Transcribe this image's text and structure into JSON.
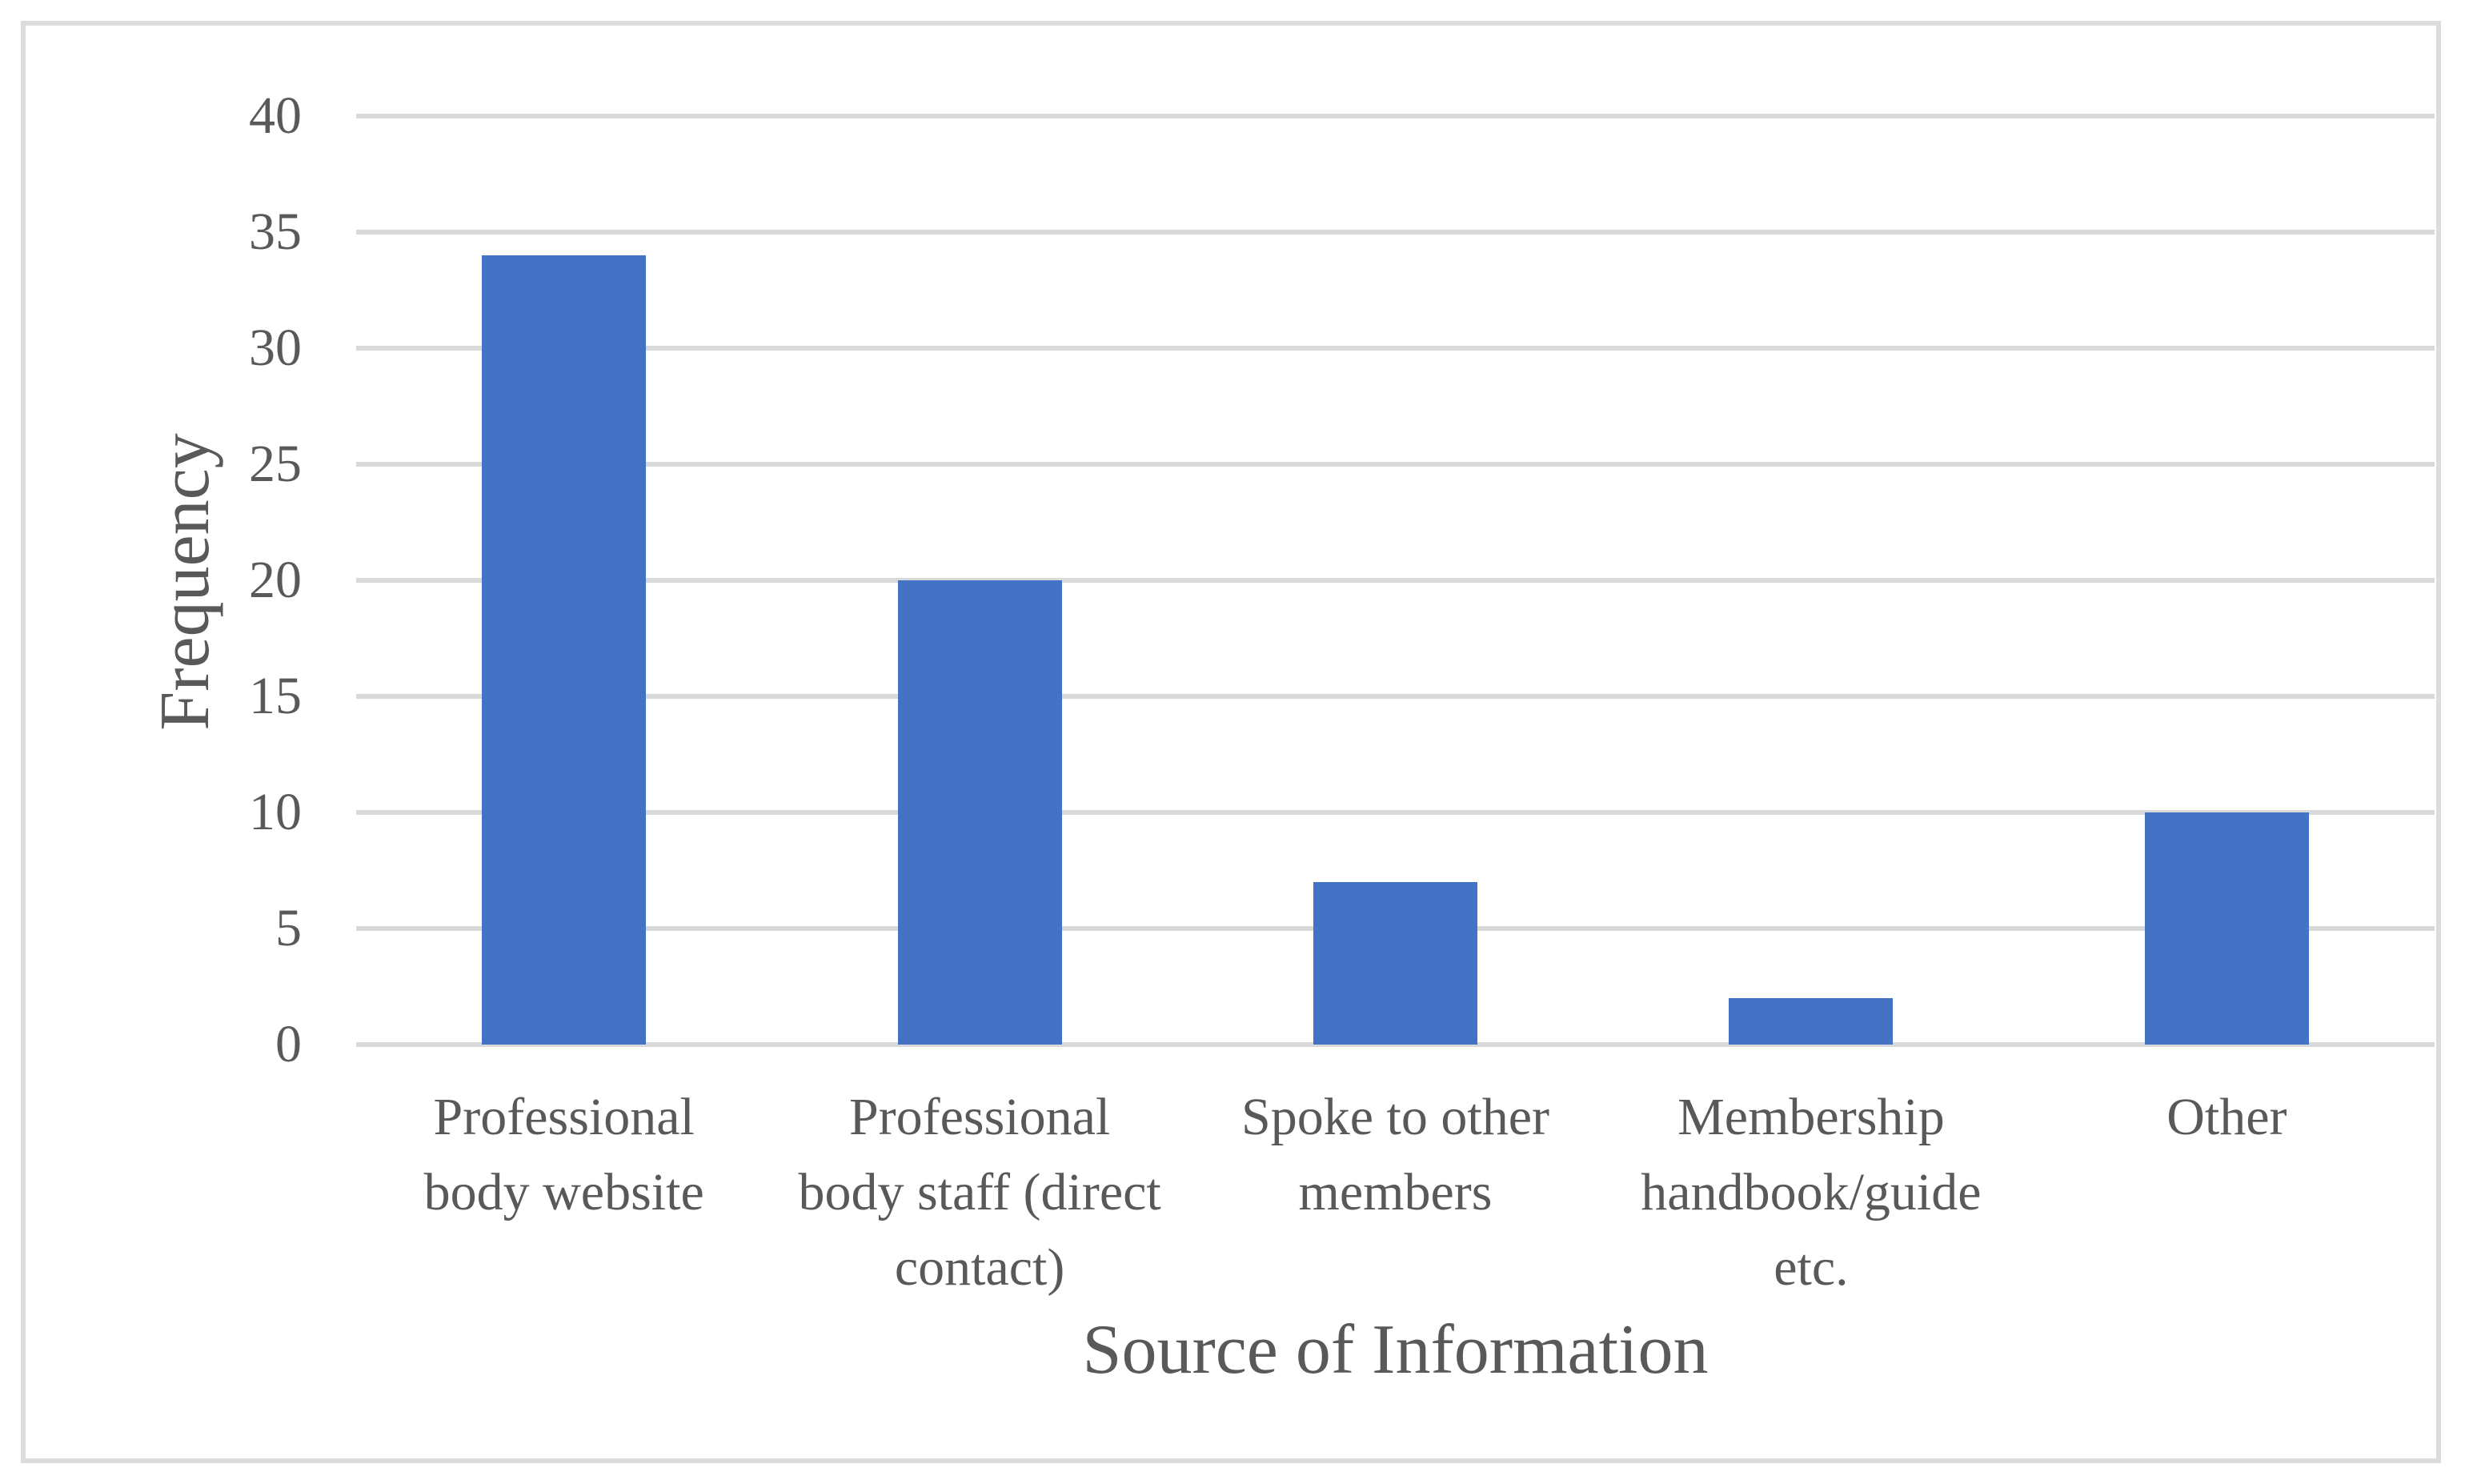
{
  "chart_data": {
    "type": "bar",
    "title": "",
    "categories": [
      "Professional body website",
      "Professional body staff (direct contact)",
      "Spoke to other members",
      "Membership handbook/guide etc.",
      "Other"
    ],
    "category_display_lines": [
      [
        "Professional",
        "body website"
      ],
      [
        "Professional",
        "body staff (direct",
        "contact)"
      ],
      [
        "Spoke to other",
        "members"
      ],
      [
        "Membership",
        "handbook/guide",
        "etc."
      ],
      [
        "Other"
      ]
    ],
    "values": [
      34,
      20,
      7,
      2,
      10
    ],
    "xlabel": "Source of Information",
    "ylabel": "Frequency",
    "ylim": [
      0,
      40
    ],
    "yticks": [
      0,
      5,
      10,
      15,
      20,
      25,
      30,
      35,
      40
    ],
    "grid": "horizontal",
    "legend": "none",
    "colors": {
      "bar": "#4472C4",
      "gridline": "#D9D9D9",
      "axis_text": "#595959",
      "frame_border": "#DCDCDC",
      "background": "#FFFFFF"
    }
  }
}
